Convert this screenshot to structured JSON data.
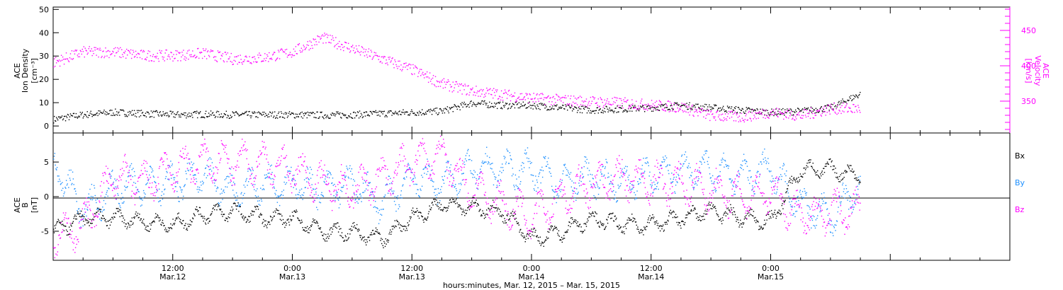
{
  "chart_data": [
    {
      "type": "scatter",
      "panel": "plasma",
      "left_axis": {
        "label_lines": [
          "ACE",
          "Ion Density"
        ],
        "unit_label": "[cm⁻³]",
        "ticks": [
          "0",
          "10",
          "20",
          "30",
          "40",
          "50"
        ],
        "range": [
          -3,
          51
        ]
      },
      "right_axis": {
        "label_lines": [
          "ACE",
          "Velocity"
        ],
        "unit_label": "[km/s]",
        "ticks": [
          "350",
          "400",
          "450"
        ],
        "range": [
          305,
          483
        ],
        "color": "#ff00ff"
      },
      "series": [
        {
          "name": "Ion Density",
          "axis": "left",
          "color": "#000000",
          "x": [
            0.0,
            0.25,
            0.5,
            0.75,
            1.0,
            1.25,
            1.5,
            1.75,
            2.0,
            2.25,
            2.5,
            2.75,
            3.0,
            3.25,
            3.5,
            3.75,
            4.0,
            4.25,
            4.5,
            4.75,
            5.0,
            5.25,
            5.5,
            5.75,
            6.0,
            6.25,
            6.5,
            6.75
          ],
          "y": [
            3,
            5,
            6,
            5.5,
            5,
            5.2,
            5,
            5,
            5,
            4.8,
            5,
            5.5,
            6,
            6.5,
            10,
            9,
            9,
            8,
            7,
            7.5,
            8,
            9,
            8,
            7,
            6,
            6.5,
            8,
            14
          ],
          "noise": 1.5
        },
        {
          "name": "Velocity",
          "axis": "right",
          "color": "#ff00ff",
          "x": [
            0.0,
            0.25,
            0.5,
            0.75,
            1.0,
            1.25,
            1.5,
            1.75,
            2.0,
            2.25,
            2.5,
            2.75,
            3.0,
            3.25,
            3.5,
            3.75,
            4.0,
            4.25,
            4.5,
            4.75,
            5.0,
            5.25,
            5.5,
            5.75,
            6.0,
            6.25,
            6.5,
            6.75
          ],
          "y": [
            405,
            420,
            420,
            415,
            415,
            418,
            410,
            412,
            420,
            440,
            425,
            410,
            395,
            375,
            365,
            360,
            355,
            352,
            350,
            348,
            345,
            342,
            330,
            328,
            335,
            330,
            340,
            340
          ],
          "noise": 8
        }
      ]
    },
    {
      "type": "scatter",
      "panel": "magnetic",
      "left_axis": {
        "label_lines": [
          "ACE",
          "B"
        ],
        "unit_label": "[nT]",
        "ticks": [
          "-5",
          "0",
          "5"
        ],
        "range": [
          -9.2,
          9.2
        ]
      },
      "zero_line": true,
      "legend": [
        "Bx",
        "By",
        "Bz"
      ],
      "legend_position": "right",
      "series": [
        {
          "name": "Bx",
          "color": "#000000",
          "x": [
            0.0,
            0.25,
            0.5,
            0.75,
            1.0,
            1.25,
            1.5,
            1.75,
            2.0,
            2.25,
            2.5,
            2.75,
            3.0,
            3.25,
            3.5,
            3.75,
            4.0,
            4.25,
            4.5,
            4.75,
            5.0,
            5.25,
            5.5,
            5.75,
            6.0,
            6.25,
            6.5,
            6.75
          ],
          "y": [
            -5,
            -3,
            -3,
            -3.5,
            -4,
            -2.5,
            -2,
            -3,
            -3,
            -5,
            -5,
            -6,
            -3,
            -1,
            -1.5,
            -2,
            -6,
            -5,
            -3,
            -4,
            -4,
            -3,
            -2,
            -3,
            -3.5,
            4,
            4,
            3
          ],
          "noise": 1.2
        },
        {
          "name": "By",
          "color": "#1e90ff",
          "x": [
            0.0,
            0.25,
            0.5,
            0.75,
            1.0,
            1.25,
            1.5,
            1.75,
            2.0,
            2.25,
            2.5,
            2.75,
            3.0,
            3.25,
            3.5,
            3.75,
            4.0,
            4.25,
            4.5,
            4.75,
            5.0,
            5.25,
            5.5,
            5.75,
            6.0,
            6.25,
            6.5,
            6.75
          ],
          "y": [
            5,
            -2,
            1,
            2,
            2,
            3,
            1,
            2,
            2,
            1,
            2,
            -1,
            3,
            2,
            4,
            4,
            4,
            2,
            3,
            2,
            3,
            4,
            4,
            3,
            4,
            -1,
            -3,
            2
          ],
          "noise": 2.5
        },
        {
          "name": "Bz",
          "color": "#ff00ff",
          "x": [
            0.0,
            0.25,
            0.5,
            0.75,
            1.0,
            1.25,
            1.5,
            1.75,
            2.0,
            2.25,
            2.5,
            2.75,
            3.0,
            3.25,
            3.5,
            3.75,
            4.0,
            4.25,
            4.5,
            4.75,
            5.0,
            5.25,
            5.5,
            5.75,
            6.0,
            6.25,
            6.5,
            6.75
          ],
          "y": [
            -6,
            -4,
            3,
            2,
            4,
            5,
            5,
            5,
            4,
            2,
            1,
            3,
            5,
            6,
            1,
            -1,
            -3,
            0,
            2,
            3,
            2,
            2,
            1,
            0,
            1,
            -3,
            -2,
            -2
          ],
          "noise": 2.8
        }
      ]
    }
  ],
  "x_axis": {
    "range": [
      0,
      8
    ],
    "ticks": [
      {
        "x": 1,
        "time": "12:00",
        "date": "Mar.12"
      },
      {
        "x": 2,
        "time": "0:00",
        "date": "Mar.13"
      },
      {
        "x": 3,
        "time": "12:00",
        "date": "Mar.13"
      },
      {
        "x": 4,
        "time": "0:00",
        "date": "Mar.14"
      },
      {
        "x": 5,
        "time": "12:00",
        "date": "Mar.14"
      },
      {
        "x": 6,
        "time": "0:00",
        "date": "Mar.15"
      }
    ],
    "label": "hours:minutes, Mar. 12, 2015 – Mar. 15, 2015"
  }
}
